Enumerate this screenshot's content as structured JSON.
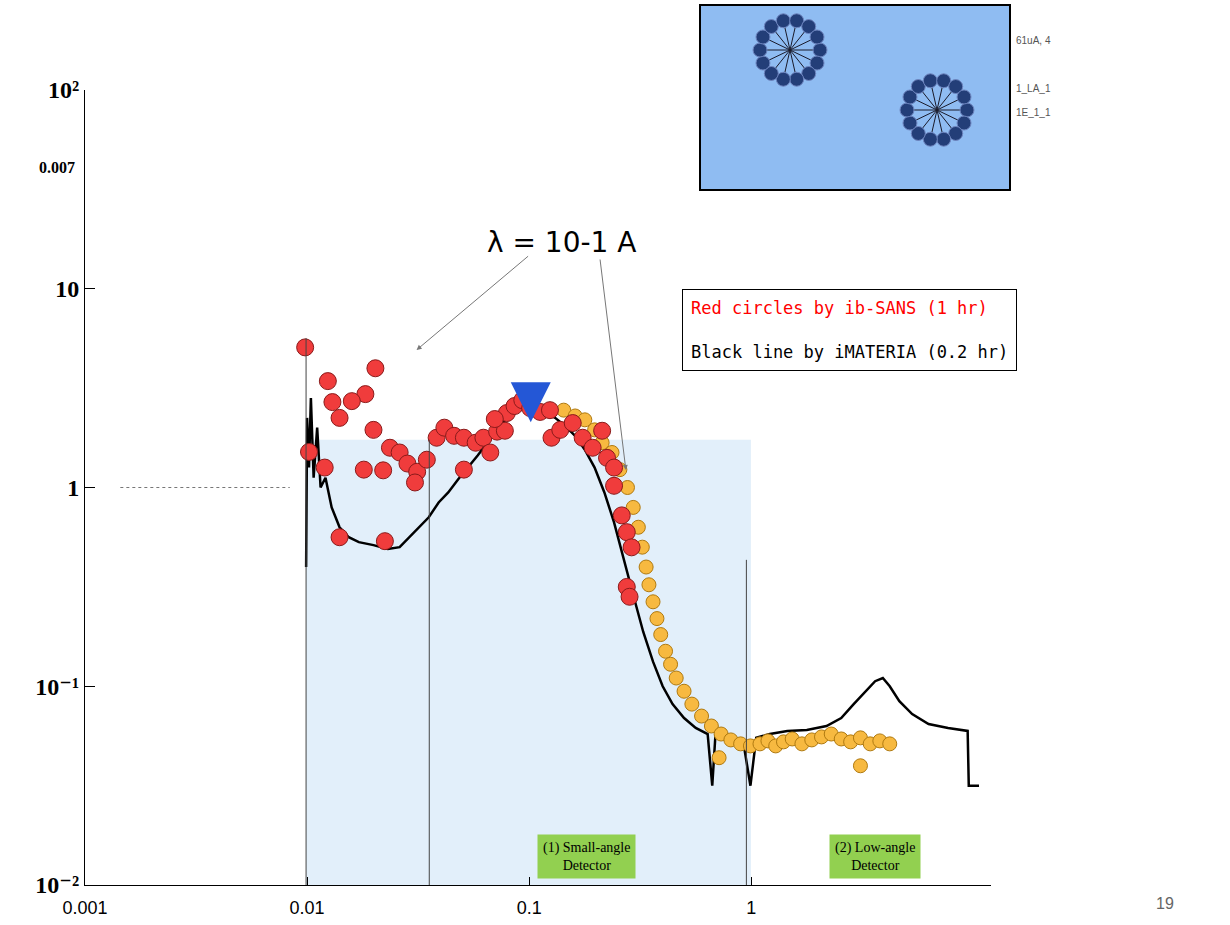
{
  "chart_data": {
    "type": "scatter",
    "log": true,
    "grid": false,
    "xlim": [
      0.001,
      12
    ],
    "xticks": [
      0.001,
      0.01,
      0.1,
      1
    ],
    "ylim": [
      0.01,
      100
    ],
    "yticks": [
      {
        "value": 0.01,
        "label": "10⁻²"
      },
      {
        "value": 0.1,
        "label": "10⁻¹"
      },
      1,
      10,
      {
        "value": 100,
        "label": "10²"
      }
    ],
    "series": [
      {
        "type": "line",
        "color": "#000000",
        "line_style": "solid",
        "x": [
          0.0099,
          0.01,
          0.0102,
          0.0104,
          0.0107,
          0.0111,
          0.0115,
          0.0121,
          0.0129,
          0.014,
          0.0154,
          0.0171,
          0.0199,
          0.0231,
          0.0261,
          0.0289,
          0.0319,
          0.0353,
          0.0391,
          0.0432,
          0.0479,
          0.053,
          0.0586,
          0.0648,
          0.0717,
          0.0793,
          0.0877,
          0.097,
          0.107,
          0.119,
          0.131,
          0.145,
          0.161,
          0.178,
          0.197,
          0.218,
          0.241,
          0.266,
          0.294,
          0.326,
          0.361,
          0.399,
          0.442,
          0.498,
          0.562,
          0.636,
          0.667,
          0.689,
          0.793,
          0.923,
          0.991,
          1.052,
          1.211,
          1.452,
          1.778,
          2.18,
          2.54,
          2.89,
          3.26,
          3.61,
          3.91,
          4.2,
          4.64,
          5.3,
          6.28,
          7.69,
          9.42,
          9.53,
          10.6
        ],
        "values": [
          0.398,
          2.24,
          1.26,
          2.82,
          1.12,
          2.0,
          1.0,
          1.12,
          0.794,
          0.631,
          0.562,
          0.531,
          0.513,
          0.49,
          0.501,
          0.562,
          0.631,
          0.708,
          0.841,
          0.944,
          1.1,
          1.26,
          1.45,
          1.68,
          1.95,
          2.24,
          2.45,
          2.57,
          2.51,
          2.4,
          2.24,
          2.04,
          1.82,
          1.55,
          1.26,
          0.944,
          0.668,
          0.447,
          0.288,
          0.188,
          0.133,
          0.1,
          0.0813,
          0.0692,
          0.0617,
          0.0575,
          0.0316,
          0.0562,
          0.0531,
          0.0513,
          0.0316,
          0.055,
          0.0575,
          0.0596,
          0.0603,
          0.0631,
          0.0692,
          0.0813,
          0.0944,
          0.106,
          0.11,
          0.1,
          0.0841,
          0.0724,
          0.0646,
          0.0617,
          0.0596,
          0.0316,
          0.0316
        ]
      },
      {
        "type": "scatter",
        "color": "#f7b940",
        "marker": "circle",
        "x": [
          0.143,
          0.161,
          0.178,
          0.197,
          0.213,
          0.236,
          0.256,
          0.277,
          0.294,
          0.31,
          0.323,
          0.336,
          0.346,
          0.361,
          0.376,
          0.391,
          0.411,
          0.433,
          0.459,
          0.498,
          0.54,
          0.597,
          0.661,
          0.731,
          0.809,
          0.895,
          0.991,
          0.716,
          1.094,
          1.188,
          1.288,
          1.396,
          1.528,
          1.69,
          1.872,
          2.07,
          2.29,
          2.54,
          2.8,
          3.1,
          3.43,
          3.79,
          3.1,
          4.2
        ],
        "values": [
          2.45,
          2.29,
          2.19,
          1.95,
          1.68,
          1.5,
          1.23,
          1.0,
          0.794,
          0.631,
          0.501,
          0.398,
          0.324,
          0.266,
          0.219,
          0.182,
          0.15,
          0.129,
          0.11,
          0.0944,
          0.0813,
          0.0708,
          0.0631,
          0.0575,
          0.0537,
          0.0513,
          0.0501,
          0.0437,
          0.0513,
          0.0531,
          0.0501,
          0.0525,
          0.0543,
          0.0513,
          0.0537,
          0.0556,
          0.0575,
          0.0543,
          0.0525,
          0.055,
          0.0513,
          0.0531,
          0.0398,
          0.0513
        ]
      },
      {
        "type": "scatter",
        "color": "#f03c3c",
        "marker": "circle",
        "x": [
          0.0098,
          0.0102,
          0.0124,
          0.013,
          0.014,
          0.0183,
          0.0203,
          0.0159,
          0.012,
          0.014,
          0.018,
          0.0224,
          0.022,
          0.0199,
          0.0236,
          0.0261,
          0.0283,
          0.0313,
          0.0306,
          0.0346,
          0.0383,
          0.0415,
          0.0459,
          0.0508,
          0.0574,
          0.0508,
          0.0622,
          0.0668,
          0.0717,
          0.0777,
          0.0793,
          0.07,
          0.0859,
          0.0931,
          0.101,
          0.112,
          0.124,
          0.126,
          0.138,
          0.157,
          0.174,
          0.193,
          0.213,
          0.224,
          0.241,
          0.241,
          0.261,
          0.275,
          0.289,
          0.275,
          0.283
        ],
        "values": [
          5.07,
          1.51,
          3.43,
          2.69,
          2.24,
          2.95,
          3.98,
          2.72,
          1.26,
          0.562,
          1.23,
          0.537,
          1.22,
          1.95,
          1.585,
          1.5,
          1.32,
          1.2,
          1.06,
          1.38,
          1.78,
          2.0,
          1.82,
          1.78,
          1.68,
          1.23,
          1.78,
          1.5,
          1.91,
          1.93,
          2.37,
          2.21,
          2.57,
          2.75,
          2.51,
          2.4,
          2.45,
          1.78,
          1.95,
          2.11,
          1.78,
          1.585,
          1.93,
          1.41,
          1.26,
          1.02,
          0.724,
          0.596,
          0.5,
          0.316,
          0.282
        ]
      }
    ],
    "annotations": [
      {
        "text": "λ = 10-1 A",
        "x": 0.14,
        "y": 17
      }
    ],
    "notes": [
      {
        "text": "Red circles by ib-SANS (1 hr)",
        "color": "#ff0000"
      },
      {
        "text": "Black line by iMATERIA (0.2 hr)",
        "color": "#000000"
      }
    ],
    "detectors": [
      [
        "(1) Small-angle",
        "Detector"
      ],
      [
        "(2) Low-angle",
        "Detector"
      ]
    ],
    "side_label": "0.007",
    "inset_text": [
      "61uA, 4",
      "1_LA_1",
      "1E_1_1"
    ],
    "page_number": "19"
  }
}
